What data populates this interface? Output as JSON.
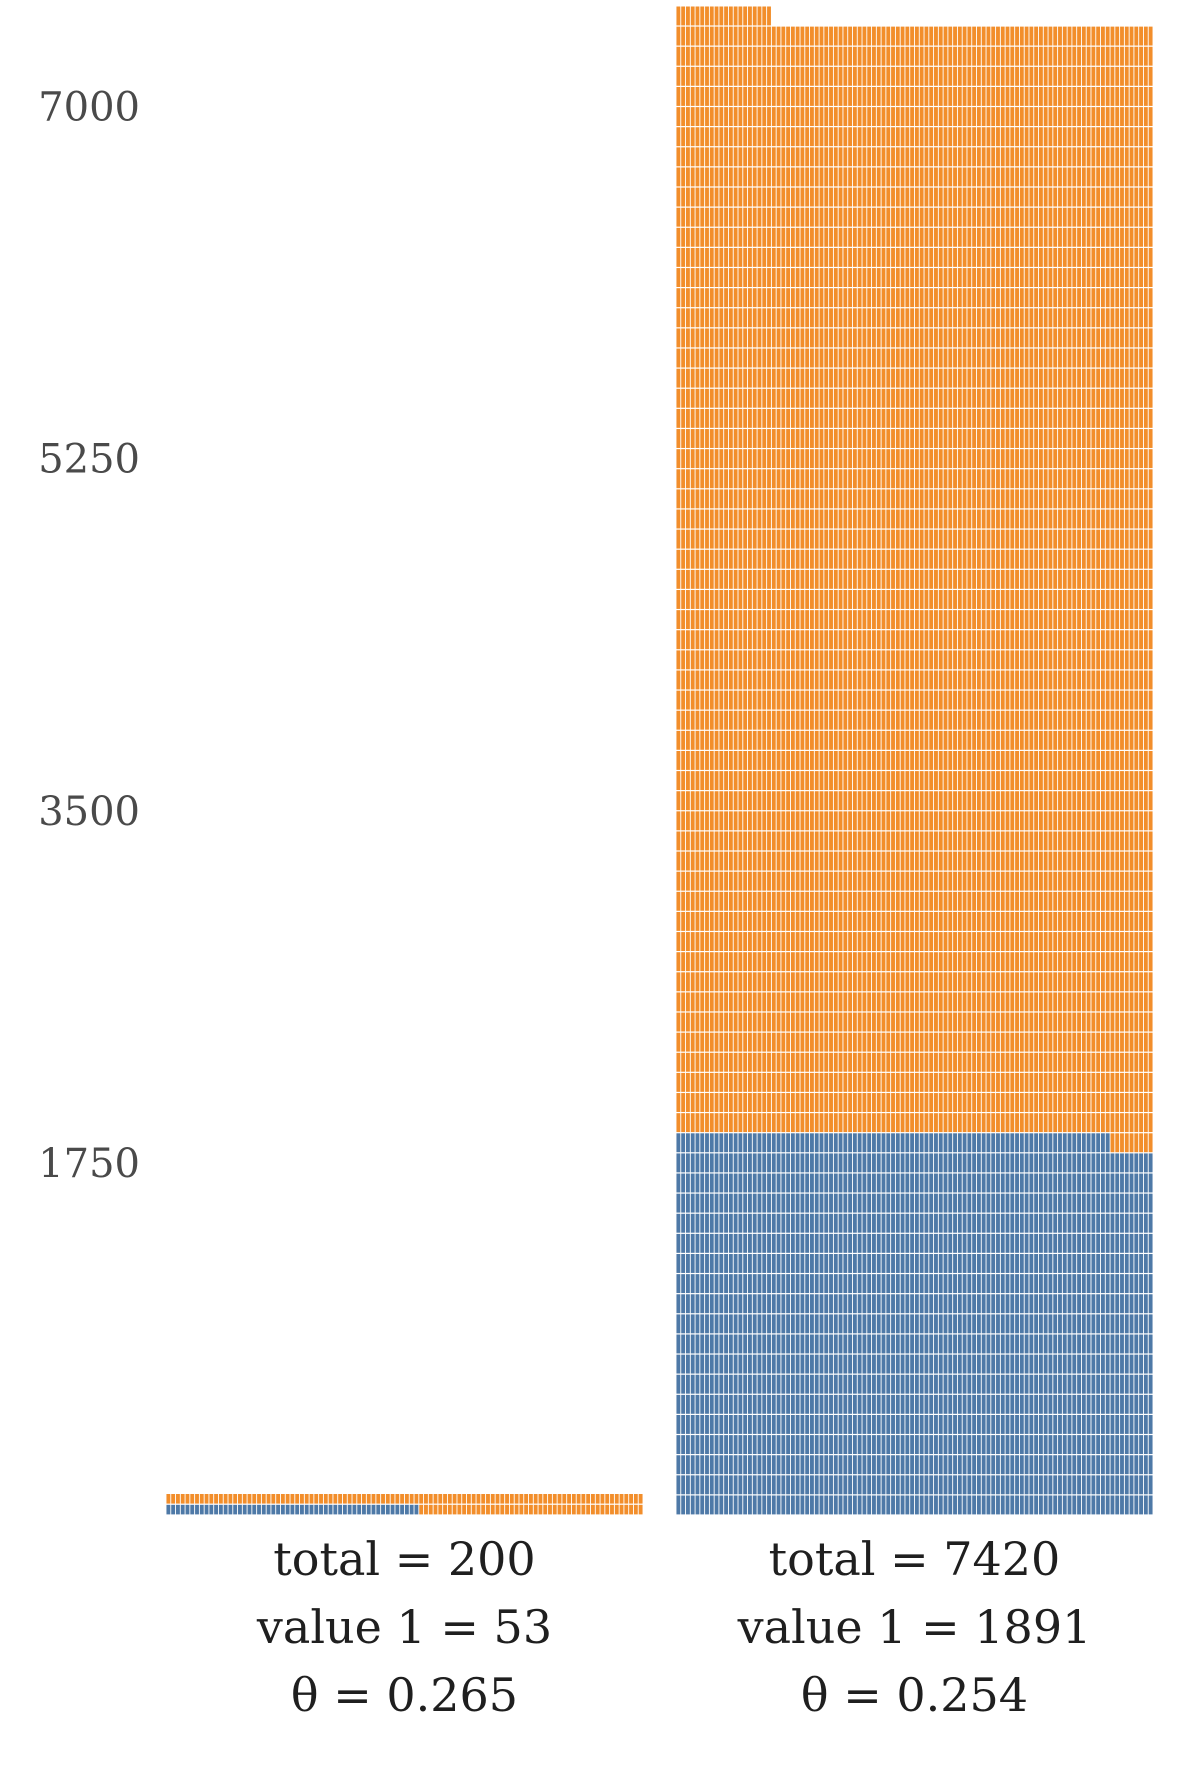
{
  "chart_data": {
    "type": "waffle-bar",
    "ylim": [
      0,
      7420
    ],
    "y_ticks": [
      "1750",
      "3500",
      "5250",
      "7000"
    ],
    "y_tick_values": [
      1750,
      3500,
      5250,
      7000
    ],
    "grid": false,
    "colors": {
      "value_1": "#4e79a7",
      "remainder": "#f28e2b"
    },
    "bars": [
      {
        "total": 200,
        "value_1": 53,
        "theta": 0.265,
        "caption": [
          "total = 200",
          "value 1 = 53",
          "θ = 0.265"
        ]
      },
      {
        "total": 7420,
        "value_1": 1891,
        "theta": 0.254,
        "caption": [
          "total = 7420",
          "value 1 = 1891",
          "θ = 0.254"
        ]
      }
    ]
  }
}
